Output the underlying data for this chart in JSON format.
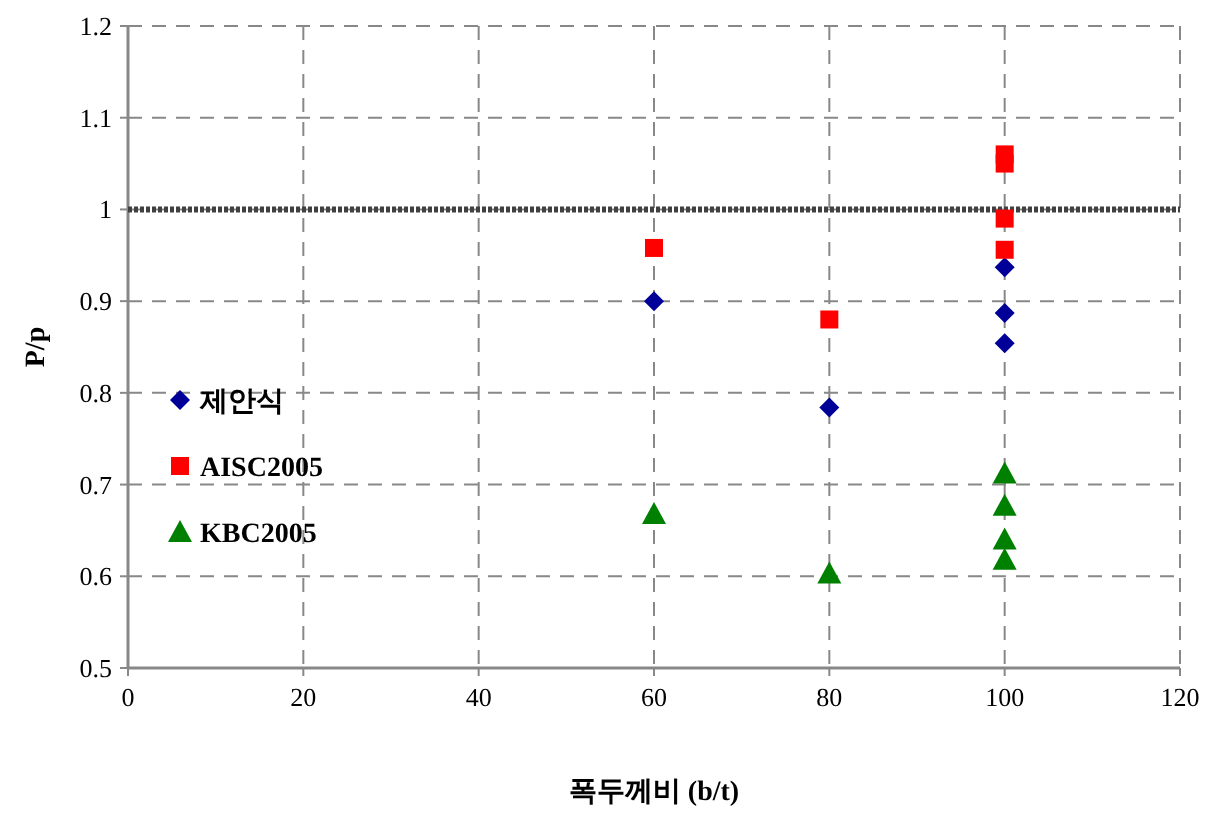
{
  "chart_data": {
    "type": "scatter",
    "xlabel": "폭두께비 (b/t)",
    "ylabel": "P/p",
    "xlim": [
      0,
      120
    ],
    "xticks": [
      0,
      20,
      40,
      60,
      80,
      100,
      120
    ],
    "ylim": [
      0.5,
      1.2
    ],
    "yticks": [
      0.5,
      0.6,
      0.7,
      0.8,
      0.9,
      {
        "value": 1,
        "label": "1"
      },
      1.1,
      1.2
    ],
    "grid": true,
    "legend": "left",
    "ref_lines": [
      {
        "axis": "y",
        "value": 1,
        "color": "#404040",
        "line_style": "dotted"
      }
    ],
    "series": [
      {
        "name": "제안식",
        "color": "#000099",
        "marker": "diamond",
        "x": [
          60,
          80,
          100,
          100,
          100
        ],
        "values": [
          0.9,
          0.784,
          0.937,
          0.887,
          0.854
        ]
      },
      {
        "name": "AISC2005",
        "color": "#ff0000",
        "marker": "square",
        "x": [
          60,
          80,
          100,
          100,
          100,
          100
        ],
        "values": [
          0.958,
          0.88,
          1.06,
          1.05,
          0.99,
          0.956
        ]
      },
      {
        "name": "KBC2005",
        "color": "#008000",
        "marker": "triangle",
        "x": [
          60,
          80,
          100,
          100,
          100,
          100
        ],
        "values": [
          0.668,
          0.603,
          0.712,
          0.677,
          0.64,
          0.618
        ]
      }
    ]
  }
}
